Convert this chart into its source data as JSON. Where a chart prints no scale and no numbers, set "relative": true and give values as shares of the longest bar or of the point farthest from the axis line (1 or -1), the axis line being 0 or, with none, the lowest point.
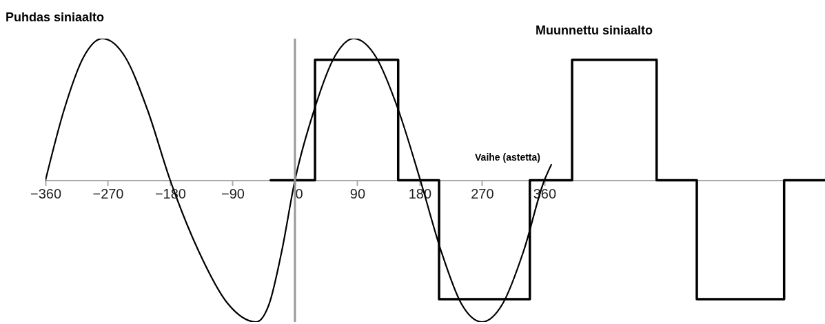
{
  "chart_data": {
    "type": "line",
    "relative": true,
    "xlabel": "Vaihe (astetta)",
    "xlim": [
      -360,
      765
    ],
    "xticks": [
      -360,
      -270,
      -180,
      -90,
      0,
      90,
      180,
      270,
      360
    ],
    "series": [
      {
        "name": "Puhdas siniaalto",
        "type": "line",
        "color": "#000000",
        "x": [
          -360,
          -333,
          -305,
          -278,
          -245,
          -213,
          -180,
          -139,
          -97,
          -56,
          -37,
          -19,
          0,
          28,
          57,
          85,
          117,
          149,
          181,
          211,
          240,
          270,
          300,
          330,
          360,
          370
        ],
        "values": [
          0,
          0.5,
          0.87,
          1,
          0.87,
          0.5,
          0,
          -0.5,
          -0.87,
          -1,
          -0.87,
          -0.5,
          0,
          0.5,
          0.87,
          1,
          0.87,
          0.5,
          0,
          -0.5,
          -0.87,
          -1,
          -0.87,
          -0.5,
          0,
          0.11
        ]
      },
      {
        "name": "Muunnettu siniaalto",
        "type": "step",
        "color": "#000000",
        "x": [
          -35,
          29,
          149,
          208,
          339,
          400,
          522,
          580,
          706,
          765
        ],
        "values": [
          0,
          0.85,
          0,
          -0.84,
          0,
          0.85,
          0,
          -0.84,
          0,
          0
        ]
      }
    ],
    "ref_lines": [
      {
        "axis": "x",
        "value": 0,
        "color": "#999999"
      }
    ],
    "legend": false
  }
}
